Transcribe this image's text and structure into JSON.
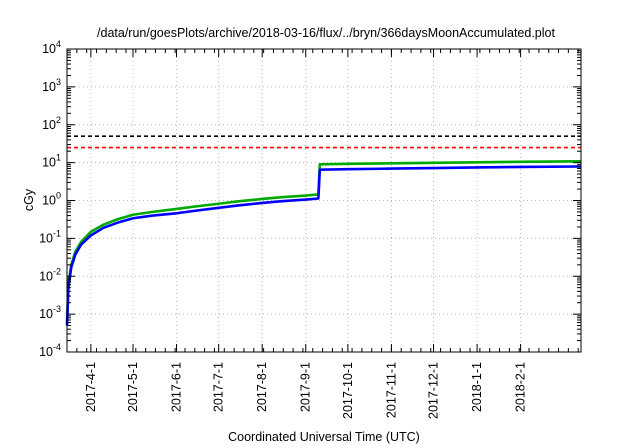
{
  "chart_data": {
    "type": "line",
    "title": "/data/run/goesPlots/archive/2018-03-16/flux/../bryn/366daysMoonAccumulated.plot",
    "xlabel": "Coordinated Universal Time (UTC)",
    "ylabel": "cGy",
    "x_axis_type": "date",
    "xlim": [
      "2017-03-15",
      "2018-03-16"
    ],
    "ylim": [
      0.0001,
      10000
    ],
    "yscale": "log",
    "grid": true,
    "x_ticks": [
      {
        "date": "2017-04-01",
        "label": "2017-4-1"
      },
      {
        "date": "2017-05-01",
        "label": "2017-5-1"
      },
      {
        "date": "2017-06-01",
        "label": "2017-6-1"
      },
      {
        "date": "2017-07-01",
        "label": "2017-7-1"
      },
      {
        "date": "2017-08-01",
        "label": "2017-8-1"
      },
      {
        "date": "2017-09-01",
        "label": "2017-9-1"
      },
      {
        "date": "2017-10-01",
        "label": "2017-10-1"
      },
      {
        "date": "2017-11-01",
        "label": "2017-11-1"
      },
      {
        "date": "2017-12-01",
        "label": "2017-12-1"
      },
      {
        "date": "2018-01-01",
        "label": "2018-1-1"
      },
      {
        "date": "2018-02-01",
        "label": "2018-2-1"
      }
    ],
    "y_ticks": [
      {
        "value": 0.0001,
        "base": "10",
        "exp": "-4"
      },
      {
        "value": 0.001,
        "base": "10",
        "exp": "-3"
      },
      {
        "value": 0.01,
        "base": "10",
        "exp": "-2"
      },
      {
        "value": 0.1,
        "base": "10",
        "exp": "-1"
      },
      {
        "value": 1,
        "base": "10",
        "exp": "0"
      },
      {
        "value": 10,
        "base": "10",
        "exp": "1"
      },
      {
        "value": 100,
        "base": "10",
        "exp": "2"
      },
      {
        "value": 1000,
        "base": "10",
        "exp": "3"
      },
      {
        "value": 10000,
        "base": "10",
        "exp": "4"
      }
    ],
    "thresholds": [
      {
        "value": 50,
        "color": "#000000",
        "style": "dashed"
      },
      {
        "value": 25,
        "color": "#ff0000",
        "style": "dashed"
      }
    ],
    "series": [
      {
        "color": "#00aa00",
        "points": [
          [
            "2017-03-15",
            0.0006
          ],
          [
            "2017-03-16",
            0.006
          ],
          [
            "2017-03-18",
            0.02
          ],
          [
            "2017-03-21",
            0.045
          ],
          [
            "2017-03-25",
            0.08
          ],
          [
            "2017-04-01",
            0.15
          ],
          [
            "2017-04-10",
            0.23
          ],
          [
            "2017-04-20",
            0.32
          ],
          [
            "2017-05-01",
            0.42
          ],
          [
            "2017-05-15",
            0.5
          ],
          [
            "2017-06-01",
            0.6
          ],
          [
            "2017-06-15",
            0.7
          ],
          [
            "2017-07-01",
            0.82
          ],
          [
            "2017-07-15",
            0.95
          ],
          [
            "2017-08-01",
            1.1
          ],
          [
            "2017-08-15",
            1.22
          ],
          [
            "2017-09-01",
            1.35
          ],
          [
            "2017-09-10",
            1.45
          ],
          [
            "2017-09-11",
            9.0
          ],
          [
            "2017-10-01",
            9.3
          ],
          [
            "2017-11-01",
            9.6
          ],
          [
            "2017-12-01",
            9.9
          ],
          [
            "2018-01-01",
            10.2
          ],
          [
            "2018-02-01",
            10.5
          ],
          [
            "2018-03-16",
            10.8
          ]
        ]
      },
      {
        "color": "#0000ff",
        "points": [
          [
            "2017-03-15",
            0.0005
          ],
          [
            "2017-03-16",
            0.005
          ],
          [
            "2017-03-18",
            0.017
          ],
          [
            "2017-03-21",
            0.038
          ],
          [
            "2017-03-25",
            0.068
          ],
          [
            "2017-04-01",
            0.12
          ],
          [
            "2017-04-10",
            0.19
          ],
          [
            "2017-04-20",
            0.26
          ],
          [
            "2017-05-01",
            0.34
          ],
          [
            "2017-05-15",
            0.4
          ],
          [
            "2017-06-01",
            0.46
          ],
          [
            "2017-06-15",
            0.54
          ],
          [
            "2017-07-01",
            0.64
          ],
          [
            "2017-07-15",
            0.74
          ],
          [
            "2017-08-01",
            0.86
          ],
          [
            "2017-08-15",
            0.96
          ],
          [
            "2017-09-01",
            1.06
          ],
          [
            "2017-09-10",
            1.13
          ],
          [
            "2017-09-11",
            6.5
          ],
          [
            "2017-10-01",
            6.7
          ],
          [
            "2017-11-01",
            6.95
          ],
          [
            "2017-12-01",
            7.2
          ],
          [
            "2018-01-01",
            7.45
          ],
          [
            "2018-02-01",
            7.7
          ],
          [
            "2018-03-16",
            7.9
          ]
        ]
      }
    ]
  }
}
